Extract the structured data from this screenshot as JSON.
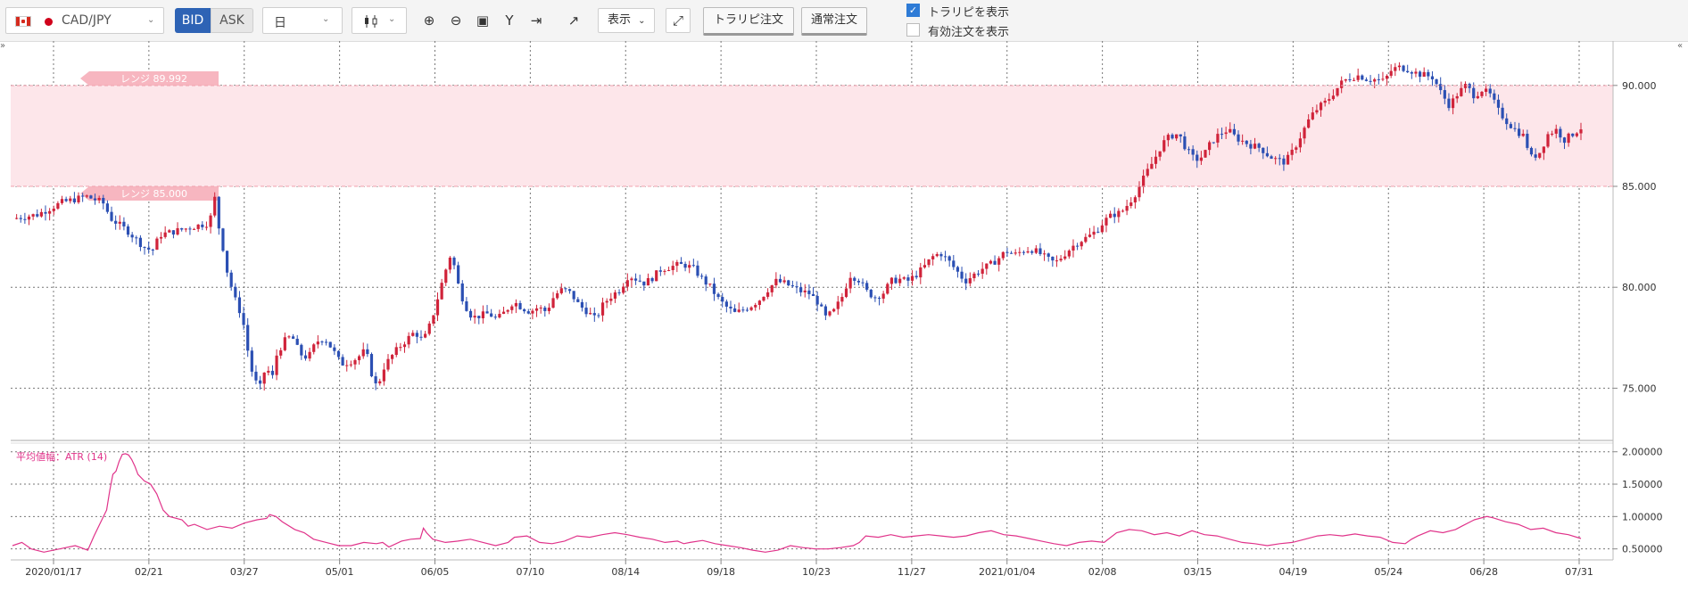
{
  "toolbar": {
    "symbol": "CAD/JPY",
    "bid_label": "BID",
    "ask_label": "ASK",
    "period": "日",
    "display_label": "表示",
    "trailing_order_label": "トラリピ注文",
    "normal_order_label": "通常注文",
    "show_trailing_label": "トラリピを表示",
    "show_trailing_checked": true,
    "show_valid_orders_label": "有効注文を表示",
    "show_valid_orders_checked": false
  },
  "range": {
    "upper_label": "レンジ 89.992",
    "lower_label": "レンジ 85.000"
  },
  "indicator": {
    "label": "平均値幅：ATR (14)"
  },
  "colors": {
    "up": "#d0233a",
    "down": "#2b4fb3",
    "range_fill": "#fde6ea",
    "range_tag": "#f7b6c0",
    "atr_line": "#e0338a",
    "bid_active": "#2e63b5"
  },
  "chart_data": [
    {
      "type": "candlestick",
      "title": "CAD/JPY",
      "y_ticks": [
        "90.000",
        "85.000",
        "80.000",
        "75.000"
      ],
      "ylim": [
        72.5,
        92.2
      ],
      "x_ticks": [
        "2020/01/17",
        "02/21",
        "03/27",
        "05/01",
        "06/05",
        "07/10",
        "08/14",
        "09/18",
        "10/23",
        "11/27",
        "2021/01/04",
        "02/08",
        "03/15",
        "04/19",
        "05/24",
        "06/28",
        "07/31"
      ],
      "range_band": [
        85.0,
        89.992
      ],
      "close_path": [
        [
          0,
          83.4
        ],
        [
          3,
          83.6
        ],
        [
          6,
          84.2
        ],
        [
          9,
          84.5
        ],
        [
          11,
          84.2
        ],
        [
          12,
          83.4
        ],
        [
          14,
          82.8
        ],
        [
          16,
          82.0
        ],
        [
          17,
          81.8
        ],
        [
          18,
          82.6
        ],
        [
          20,
          82.8
        ],
        [
          22,
          83.0
        ],
        [
          24,
          83.2
        ],
        [
          24.6,
          84.5
        ],
        [
          25,
          83.2
        ],
        [
          25.5,
          82.3
        ],
        [
          26,
          81.0
        ],
        [
          27,
          79.5
        ],
        [
          28,
          78.5
        ],
        [
          29,
          76.0
        ],
        [
          29.5,
          75.5
        ],
        [
          30,
          74.8
        ],
        [
          30.5,
          75.6
        ],
        [
          31,
          76.2
        ],
        [
          31.5,
          75.1
        ],
        [
          32,
          76.5
        ],
        [
          33,
          77.3
        ],
        [
          34,
          77.6
        ],
        [
          35,
          76.7
        ],
        [
          36,
          76.5
        ],
        [
          37,
          77.3
        ],
        [
          38,
          77.5
        ],
        [
          39,
          76.9
        ],
        [
          40,
          76.2
        ],
        [
          41,
          76.3
        ],
        [
          42,
          76.5
        ],
        [
          43,
          76.9
        ],
        [
          44,
          75.3
        ],
        [
          44.5,
          75.0
        ],
        [
          45,
          75.9
        ],
        [
          46,
          76.5
        ],
        [
          47,
          77.0
        ],
        [
          48,
          77.4
        ],
        [
          49,
          77.8
        ],
        [
          50,
          77.3
        ],
        [
          51,
          78.3
        ],
        [
          52,
          79.8
        ],
        [
          53,
          81.2
        ],
        [
          53.5,
          81.8
        ],
        [
          54,
          80.5
        ],
        [
          55,
          79.2
        ],
        [
          56,
          78.5
        ],
        [
          57,
          78.6
        ],
        [
          58,
          78.7
        ],
        [
          59,
          78.4
        ],
        [
          60,
          78.8
        ],
        [
          61,
          79.3
        ],
        [
          62,
          79.0
        ],
        [
          63,
          78.8
        ],
        [
          64,
          79.0
        ],
        [
          65,
          78.8
        ],
        [
          66,
          79.6
        ],
        [
          67,
          79.9
        ],
        [
          68,
          79.7
        ],
        [
          69,
          79.1
        ],
        [
          70,
          78.8
        ],
        [
          71,
          78.4
        ],
        [
          72,
          79.2
        ],
        [
          73,
          79.6
        ],
        [
          74,
          79.9
        ],
        [
          75,
          80.6
        ],
        [
          76,
          80.4
        ],
        [
          77,
          80.2
        ],
        [
          78,
          80.5
        ],
        [
          79,
          80.9
        ],
        [
          80,
          81.0
        ],
        [
          81,
          81.1
        ],
        [
          82,
          81.1
        ],
        [
          83,
          80.9
        ],
        [
          84,
          80.4
        ],
        [
          85,
          80.0
        ],
        [
          86,
          79.4
        ],
        [
          87,
          79.0
        ],
        [
          88,
          78.7
        ],
        [
          89,
          78.9
        ],
        [
          90,
          79.1
        ],
        [
          91,
          79.4
        ],
        [
          92,
          79.9
        ],
        [
          93,
          80.3
        ],
        [
          94,
          80.2
        ],
        [
          95,
          80.0
        ],
        [
          96,
          79.8
        ],
        [
          97,
          79.7
        ],
        [
          98,
          79.3
        ],
        [
          99,
          78.5
        ],
        [
          100,
          78.8
        ],
        [
          101,
          79.5
        ],
        [
          102,
          80.6
        ],
        [
          103,
          80.4
        ],
        [
          104,
          79.8
        ],
        [
          105,
          79.5
        ],
        [
          106,
          79.7
        ],
        [
          107,
          80.3
        ],
        [
          108,
          80.4
        ],
        [
          109,
          80.3
        ],
        [
          110,
          80.6
        ],
        [
          111,
          81.0
        ],
        [
          112,
          81.5
        ],
        [
          113,
          81.7
        ],
        [
          114,
          81.3
        ],
        [
          115,
          80.8
        ],
        [
          116,
          80.3
        ],
        [
          117,
          80.6
        ],
        [
          118,
          80.9
        ],
        [
          119,
          81.1
        ],
        [
          120,
          81.4
        ],
        [
          121,
          81.8
        ],
        [
          122,
          81.6
        ],
        [
          123,
          81.8
        ],
        [
          124,
          81.9
        ],
        [
          125,
          81.7
        ],
        [
          126,
          81.4
        ],
        [
          127,
          81.2
        ],
        [
          128,
          81.6
        ],
        [
          129,
          82.0
        ],
        [
          130,
          82.3
        ],
        [
          131,
          82.5
        ],
        [
          132,
          82.8
        ],
        [
          133,
          83.3
        ],
        [
          134,
          83.6
        ],
        [
          135,
          83.7
        ],
        [
          136,
          84.2
        ],
        [
          137,
          84.8
        ],
        [
          138,
          85.6
        ],
        [
          139,
          86.3
        ],
        [
          140,
          87.1
        ],
        [
          141,
          87.5
        ],
        [
          142,
          87.6
        ],
        [
          143,
          86.8
        ],
        [
          144,
          86.3
        ],
        [
          145,
          86.5
        ],
        [
          146,
          87.2
        ],
        [
          147,
          87.6
        ],
        [
          148,
          87.8
        ],
        [
          149,
          87.4
        ],
        [
          150,
          87.2
        ],
        [
          151,
          87.0
        ],
        [
          152,
          86.9
        ],
        [
          153,
          86.5
        ],
        [
          154,
          86.3
        ],
        [
          155,
          86.2
        ],
        [
          156,
          86.8
        ],
        [
          157,
          87.6
        ],
        [
          158,
          88.4
        ],
        [
          159,
          88.9
        ],
        [
          160,
          89.2
        ],
        [
          161,
          89.7
        ],
        [
          162,
          90.2
        ],
        [
          163,
          90.4
        ],
        [
          164,
          90.5
        ],
        [
          165,
          90.3
        ],
        [
          166,
          90.3
        ],
        [
          167,
          90.2
        ],
        [
          168,
          90.8
        ],
        [
          169,
          90.9
        ],
        [
          170,
          90.8
        ],
        [
          171,
          90.6
        ],
        [
          172,
          90.5
        ],
        [
          173,
          90.4
        ],
        [
          174,
          89.6
        ],
        [
          175,
          89.0
        ],
        [
          176,
          89.6
        ],
        [
          177,
          90.0
        ],
        [
          178,
          89.5
        ],
        [
          179,
          89.8
        ],
        [
          180,
          89.5
        ],
        [
          181,
          88.7
        ],
        [
          182,
          88.2
        ],
        [
          183,
          87.8
        ],
        [
          184,
          87.5
        ],
        [
          185,
          86.4
        ],
        [
          186,
          86.7
        ],
        [
          187,
          87.6
        ],
        [
          188,
          87.8
        ],
        [
          189,
          87.3
        ],
        [
          190,
          87.6
        ],
        [
          191,
          87.9
        ]
      ]
    },
    {
      "type": "line",
      "title": "平均値幅：ATR (14)",
      "y_ticks": [
        "2.00000",
        "1.50000",
        "1.00000",
        "0.50000"
      ],
      "ylim": [
        0.33,
        2.12
      ],
      "points": [
        [
          0,
          0.55
        ],
        [
          3,
          0.6
        ],
        [
          6,
          0.5
        ],
        [
          10,
          0.45
        ],
        [
          15,
          0.5
        ],
        [
          20,
          0.55
        ],
        [
          24,
          0.48
        ],
        [
          26,
          0.7
        ],
        [
          28,
          0.9
        ],
        [
          30,
          1.1
        ],
        [
          31,
          1.4
        ],
        [
          32,
          1.65
        ],
        [
          33,
          1.7
        ],
        [
          34,
          1.85
        ],
        [
          35,
          1.96
        ],
        [
          36,
          1.97
        ],
        [
          37,
          1.95
        ],
        [
          38,
          1.88
        ],
        [
          39,
          1.78
        ],
        [
          40,
          1.65
        ],
        [
          42,
          1.55
        ],
        [
          44,
          1.5
        ],
        [
          46,
          1.35
        ],
        [
          48,
          1.1
        ],
        [
          50,
          1.0
        ],
        [
          54,
          0.95
        ],
        [
          56,
          0.85
        ],
        [
          58,
          0.88
        ],
        [
          62,
          0.8
        ],
        [
          66,
          0.85
        ],
        [
          70,
          0.82
        ],
        [
          74,
          0.9
        ],
        [
          78,
          0.95
        ],
        [
          81,
          0.97
        ],
        [
          82,
          1.03
        ],
        [
          84,
          1.0
        ],
        [
          86,
          0.92
        ],
        [
          90,
          0.8
        ],
        [
          93,
          0.75
        ],
        [
          96,
          0.65
        ],
        [
          100,
          0.6
        ],
        [
          104,
          0.55
        ],
        [
          108,
          0.55
        ],
        [
          112,
          0.6
        ],
        [
          116,
          0.58
        ],
        [
          118,
          0.6
        ],
        [
          120,
          0.53
        ],
        [
          124,
          0.62
        ],
        [
          127,
          0.65
        ],
        [
          130,
          0.66
        ],
        [
          131,
          0.82
        ],
        [
          132,
          0.75
        ],
        [
          134,
          0.65
        ],
        [
          138,
          0.6
        ],
        [
          142,
          0.62
        ],
        [
          146,
          0.65
        ],
        [
          150,
          0.6
        ],
        [
          154,
          0.55
        ],
        [
          158,
          0.6
        ],
        [
          160,
          0.68
        ],
        [
          164,
          0.7
        ],
        [
          168,
          0.6
        ],
        [
          172,
          0.58
        ],
        [
          176,
          0.62
        ],
        [
          180,
          0.7
        ],
        [
          184,
          0.68
        ],
        [
          188,
          0.72
        ],
        [
          192,
          0.75
        ],
        [
          196,
          0.72
        ],
        [
          200,
          0.68
        ],
        [
          204,
          0.65
        ],
        [
          208,
          0.6
        ],
        [
          212,
          0.62
        ],
        [
          214,
          0.58
        ],
        [
          216,
          0.6
        ],
        [
          220,
          0.63
        ],
        [
          224,
          0.58
        ],
        [
          228,
          0.55
        ],
        [
          232,
          0.52
        ],
        [
          236,
          0.48
        ],
        [
          240,
          0.45
        ],
        [
          244,
          0.48
        ],
        [
          248,
          0.55
        ],
        [
          252,
          0.52
        ],
        [
          256,
          0.5
        ],
        [
          260,
          0.5
        ],
        [
          264,
          0.52
        ],
        [
          268,
          0.55
        ],
        [
          270,
          0.6
        ],
        [
          272,
          0.7
        ],
        [
          276,
          0.68
        ],
        [
          280,
          0.72
        ],
        [
          284,
          0.68
        ],
        [
          288,
          0.7
        ],
        [
          292,
          0.72
        ],
        [
          296,
          0.7
        ],
        [
          300,
          0.68
        ],
        [
          304,
          0.7
        ],
        [
          308,
          0.75
        ],
        [
          312,
          0.78
        ],
        [
          316,
          0.72
        ],
        [
          320,
          0.7
        ],
        [
          324,
          0.66
        ],
        [
          328,
          0.62
        ],
        [
          332,
          0.58
        ],
        [
          336,
          0.55
        ],
        [
          340,
          0.6
        ],
        [
          344,
          0.62
        ],
        [
          348,
          0.6
        ],
        [
          352,
          0.75
        ],
        [
          356,
          0.8
        ],
        [
          360,
          0.78
        ],
        [
          364,
          0.72
        ],
        [
          368,
          0.75
        ],
        [
          372,
          0.7
        ],
        [
          376,
          0.78
        ],
        [
          380,
          0.72
        ],
        [
          384,
          0.7
        ],
        [
          388,
          0.65
        ],
        [
          392,
          0.6
        ],
        [
          396,
          0.58
        ],
        [
          400,
          0.55
        ],
        [
          404,
          0.58
        ],
        [
          408,
          0.6
        ],
        [
          412,
          0.65
        ],
        [
          416,
          0.7
        ],
        [
          420,
          0.72
        ],
        [
          424,
          0.7
        ],
        [
          428,
          0.73
        ],
        [
          432,
          0.7
        ],
        [
          436,
          0.68
        ],
        [
          440,
          0.6
        ],
        [
          444,
          0.58
        ],
        [
          446,
          0.65
        ],
        [
          448,
          0.7
        ],
        [
          452,
          0.78
        ],
        [
          456,
          0.75
        ],
        [
          460,
          0.8
        ],
        [
          462,
          0.85
        ],
        [
          466,
          0.95
        ],
        [
          470,
          1.0
        ],
        [
          472,
          0.98
        ],
        [
          476,
          0.92
        ],
        [
          480,
          0.88
        ],
        [
          484,
          0.8
        ],
        [
          488,
          0.82
        ],
        [
          492,
          0.75
        ],
        [
          496,
          0.72
        ],
        [
          500,
          0.66
        ]
      ]
    }
  ]
}
